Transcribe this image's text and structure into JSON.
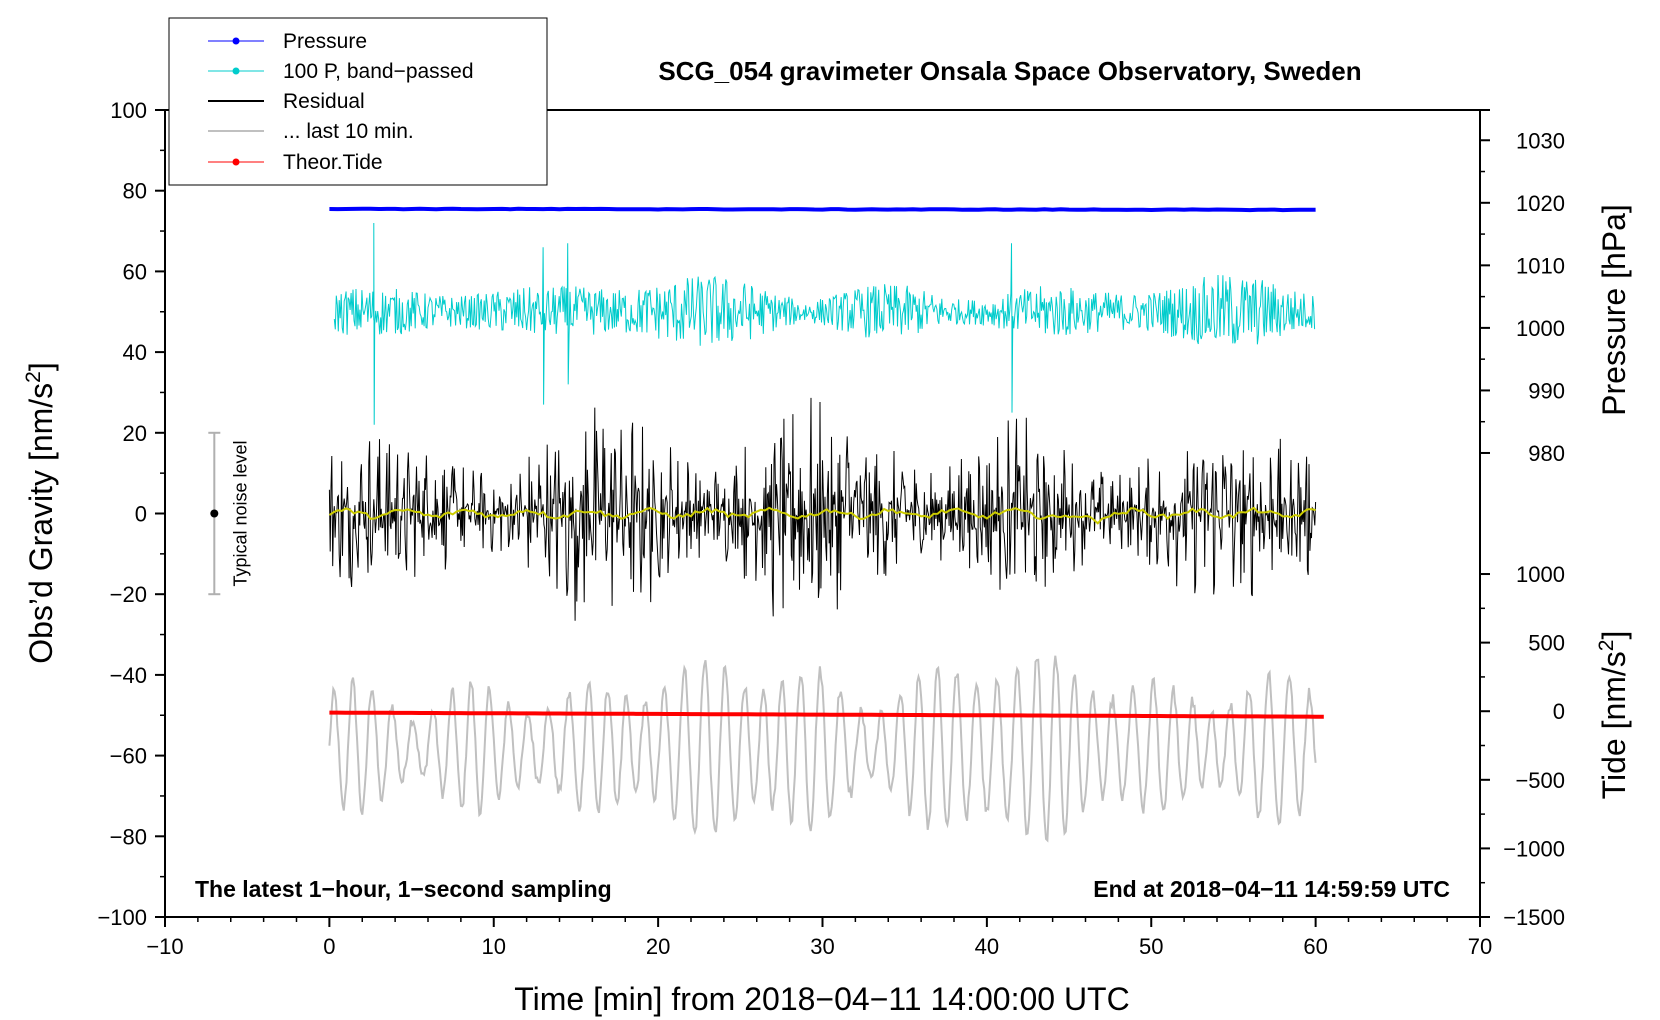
{
  "chart_data": {
    "type": "line",
    "title": "SCG_054 gravimeter Onsala Space Observatory, Sweden",
    "xlabel": "Time [min] from 2018−04−11 14:00:00 UTC",
    "ylabel_left": "Obs’d Gravity [nm/s",
    "ylabel_left_suffix": "]",
    "ylabel_pressure": "Pressure [hPa]",
    "ylabel_tide": "Tide [nm/s",
    "ylabel_tide_suffix": "]",
    "superscript": "2",
    "xlim": [
      -10,
      70
    ],
    "ylim": [
      -100,
      100
    ],
    "xticks": [
      -10,
      0,
      10,
      20,
      30,
      40,
      50,
      60,
      70
    ],
    "xtick_labels": [
      "−10",
      "0",
      "10",
      "20",
      "30",
      "40",
      "50",
      "60",
      "70"
    ],
    "yticks": [
      -100,
      -80,
      -60,
      -40,
      -20,
      0,
      20,
      40,
      60,
      80,
      100
    ],
    "ytick_labels": [
      "−100",
      "−80",
      "−60",
      "−40",
      "−20",
      "0",
      "20",
      "40",
      "60",
      "80",
      "100"
    ],
    "pressure_axis": {
      "ticks": [
        980,
        990,
        1000,
        1010,
        1020,
        1030
      ],
      "tick_labels": [
        "980",
        "990",
        "1000",
        "1010",
        "1020",
        "1030"
      ],
      "gravity_at_ticks": [
        15,
        30.5,
        46,
        61.5,
        77,
        92.5
      ]
    },
    "tide_axis": {
      "ticks": [
        -1500,
        -1000,
        -500,
        0,
        500,
        1000
      ],
      "tick_labels": [
        "−1500",
        "−1000",
        "−500",
        "0",
        "500",
        "1000"
      ],
      "gravity_at_ticks": [
        -100,
        -83,
        -66,
        -49,
        -32,
        -15
      ]
    },
    "series": [
      {
        "name": "Pressure",
        "color": "#0000ff",
        "kind": "line+markers",
        "x_range": [
          0,
          60
        ],
        "value_hPa": 1018.5,
        "gravity_offset": 75.5
      },
      {
        "name": "100 P, band−passed",
        "color": "#00cccc",
        "kind": "line+markers",
        "x_range": [
          0,
          60
        ],
        "center": 50,
        "amplitude": 8
      },
      {
        "name": "Residual",
        "color": "#000000",
        "kind": "line",
        "x_range": [
          0,
          60
        ],
        "center": 0,
        "amplitude": 28
      },
      {
        "name": "... last 10 min.",
        "color": "#c0c0c0",
        "kind": "line",
        "x_range": [
          0,
          60
        ],
        "center": -58,
        "amplitude": 20
      },
      {
        "name": "Theor.Tide",
        "color": "#ff0000",
        "kind": "line+markers",
        "x_range": [
          0,
          60.5
        ],
        "tide_start_nm_s2": -10,
        "tide_end_nm_s2": -40
      }
    ],
    "residual_mean_color": "#cccc00",
    "noise_level": {
      "label": "Typical noise level",
      "x": -7,
      "center": 0,
      "low": -20,
      "high": 20
    },
    "annotations": {
      "left": "The latest 1−hour, 1−second sampling",
      "right": "End at 2018−04−11 14:59:59 UTC"
    },
    "legend_position": "top-left"
  }
}
